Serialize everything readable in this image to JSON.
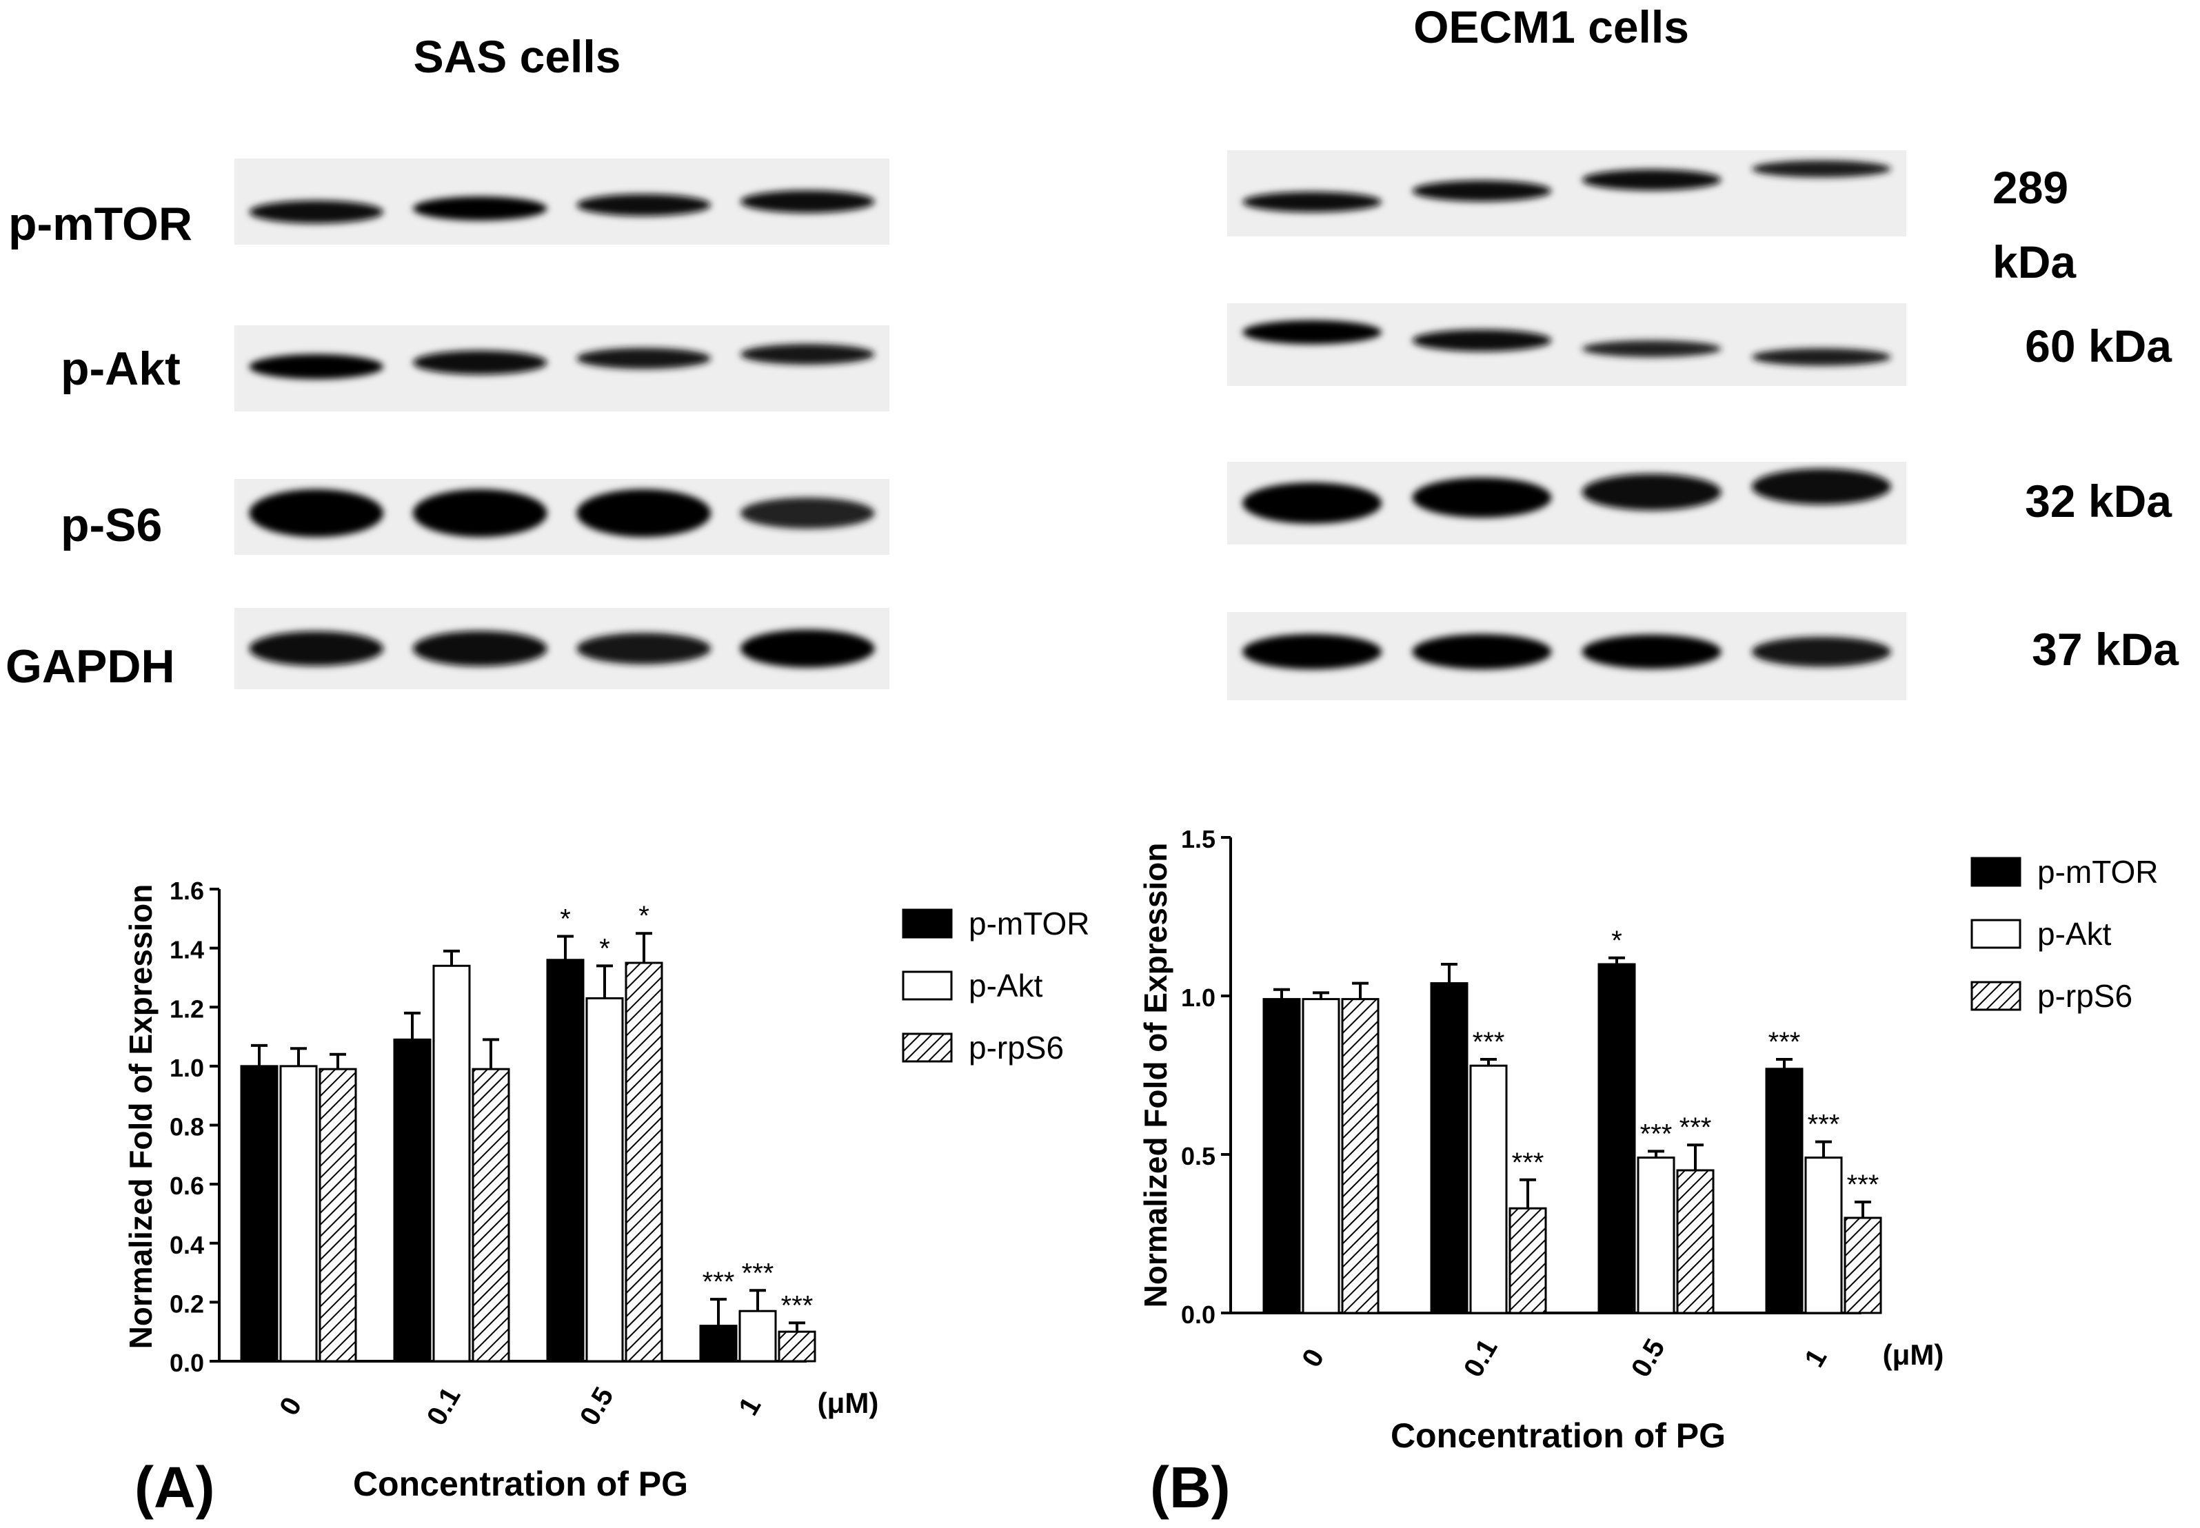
{
  "panels": [
    {
      "panel_label": "(A)",
      "cell_title": "SAS cells",
      "blot_labels": [
        "p-mTOR",
        "p-Akt",
        "p-S6",
        "GAPDH"
      ],
      "blot_intensity": [
        [
          0.88,
          0.95,
          0.8,
          0.85
        ],
        [
          0.9,
          0.85,
          0.65,
          0.62
        ],
        [
          1.0,
          1.0,
          1.0,
          0.4
        ],
        [
          0.85,
          0.88,
          0.7,
          1.0
        ]
      ]
    },
    {
      "panel_label": "(B)",
      "cell_title": "OECM1 cells",
      "kda_labels": [
        "289 kDa",
        "60 kDa",
        "32 kDa",
        "37 kDa"
      ],
      "blot_intensity": [
        [
          0.8,
          0.85,
          0.85,
          0.55
        ],
        [
          0.95,
          0.8,
          0.45,
          0.5
        ],
        [
          1.0,
          0.95,
          0.8,
          0.78
        ],
        [
          0.95,
          0.95,
          0.9,
          0.7
        ]
      ]
    }
  ],
  "chart_data": [
    {
      "type": "bar",
      "categories": [
        "0",
        "0.1",
        "0.5",
        "1"
      ],
      "unit": "(μM)",
      "xlabel": "Concentration of PG",
      "ylabel": "Normalized Fold of Expression",
      "ylim": [
        0,
        1.6
      ],
      "yticks": [
        "0.0",
        "0.2",
        "0.4",
        "0.6",
        "0.8",
        "1.0",
        "1.2",
        "1.4",
        "1.6"
      ],
      "legend_position": "right",
      "series": [
        {
          "name": "p-mTOR",
          "fill": "black",
          "values": [
            1.0,
            1.09,
            1.36,
            0.12
          ],
          "errors": [
            0.07,
            0.09,
            0.08,
            0.09
          ],
          "significance": [
            "",
            "",
            "*",
            "***"
          ]
        },
        {
          "name": "p-Akt",
          "fill": "white",
          "values": [
            1.0,
            1.34,
            1.23,
            0.17
          ],
          "errors": [
            0.06,
            0.05,
            0.11,
            0.07
          ],
          "significance": [
            "",
            "",
            "*",
            "***"
          ]
        },
        {
          "name": "p-rpS6",
          "fill": "hatch",
          "values": [
            0.99,
            0.99,
            1.35,
            0.1
          ],
          "errors": [
            0.05,
            0.1,
            0.1,
            0.03
          ],
          "significance": [
            "",
            "",
            "*",
            "***"
          ]
        }
      ]
    },
    {
      "type": "bar",
      "categories": [
        "0",
        "0.1",
        "0.5",
        "1"
      ],
      "unit": "(μM)",
      "xlabel": "Concentration of PG",
      "ylabel": "Normalized Fold of Expression",
      "ylim": [
        0,
        1.5
      ],
      "yticks": [
        "0.0",
        "0.5",
        "1.0",
        "1.5"
      ],
      "legend_position": "right",
      "series": [
        {
          "name": "p-mTOR",
          "fill": "black",
          "values": [
            0.99,
            1.04,
            1.1,
            0.77
          ],
          "errors": [
            0.03,
            0.06,
            0.02,
            0.03
          ],
          "significance": [
            "",
            "",
            "*",
            "***"
          ]
        },
        {
          "name": "p-Akt",
          "fill": "white",
          "values": [
            0.99,
            0.78,
            0.49,
            0.49
          ],
          "errors": [
            0.02,
            0.02,
            0.02,
            0.05
          ],
          "significance": [
            "",
            "***",
            "***",
            "***"
          ]
        },
        {
          "name": "p-rpS6",
          "fill": "hatch",
          "values": [
            0.99,
            0.33,
            0.45,
            0.3
          ],
          "errors": [
            0.05,
            0.09,
            0.08,
            0.05
          ],
          "significance": [
            "",
            "***",
            "***",
            "***"
          ]
        }
      ]
    }
  ]
}
